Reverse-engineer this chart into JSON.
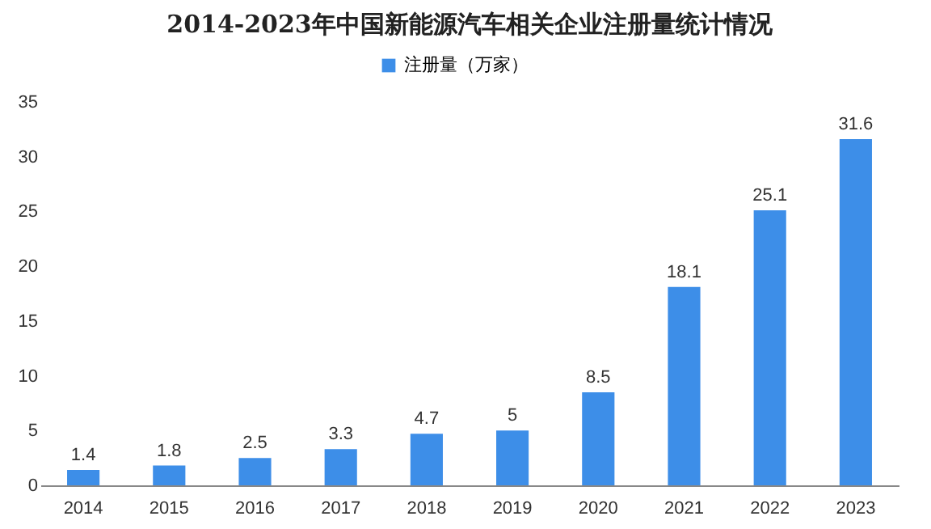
{
  "chart_data": {
    "type": "bar",
    "title": "2014-2023年中国新能源汽车相关企业注册量统计情况",
    "categories": [
      "2014",
      "2015",
      "2016",
      "2017",
      "2018",
      "2019",
      "2020",
      "2021",
      "2022",
      "2023"
    ],
    "series": [
      {
        "name": "注册量（万家）",
        "color": "#3d8ee8",
        "values": [
          1.4,
          1.8,
          2.5,
          3.3,
          4.7,
          5,
          8.5,
          18.1,
          25.1,
          31.6
        ]
      }
    ],
    "ylim": [
      0,
      35
    ],
    "yticks": [
      0,
      5,
      10,
      15,
      20,
      25,
      30,
      35
    ],
    "grid": false,
    "legend": "top",
    "data_labels": true
  }
}
